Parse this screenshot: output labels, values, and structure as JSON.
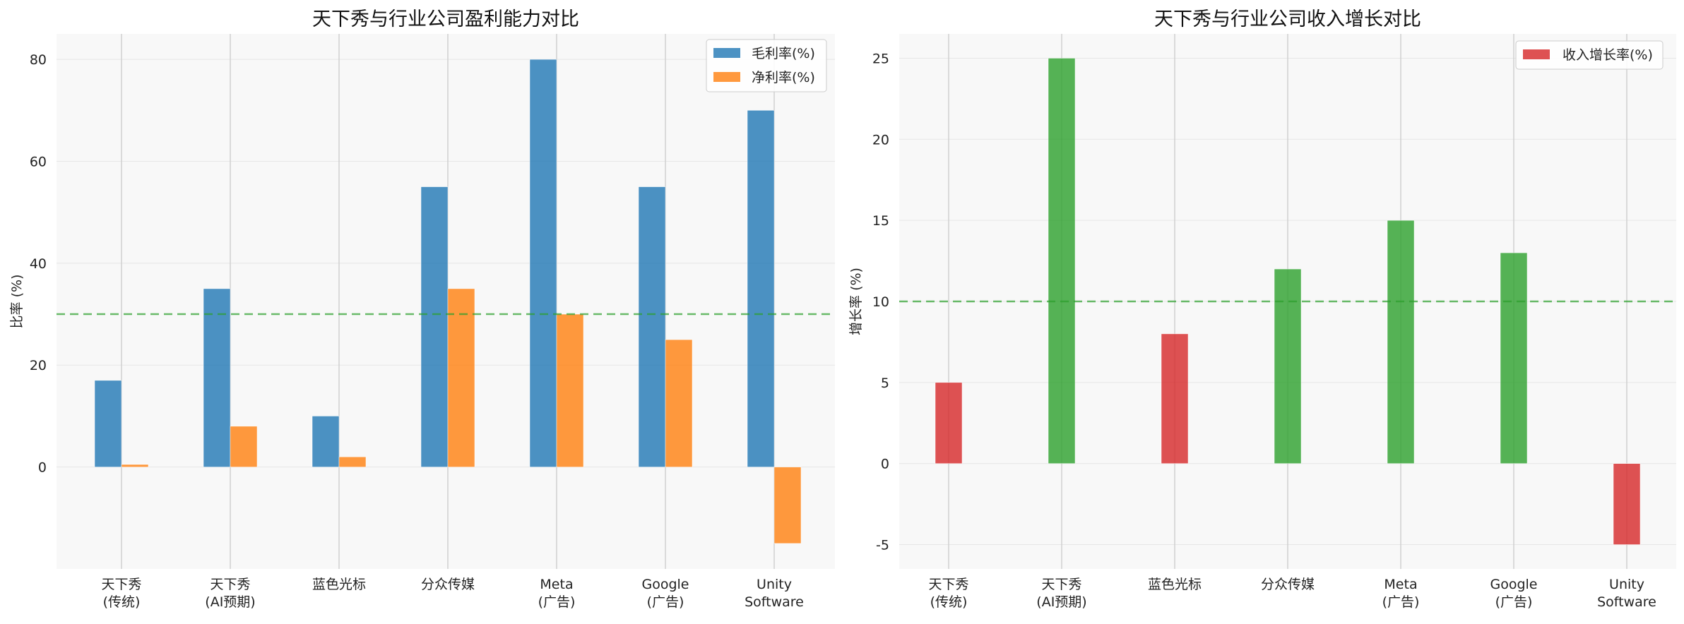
{
  "chart_data": [
    {
      "type": "bar",
      "title": "天下秀与行业公司盈利能力对比",
      "xlabel": "",
      "ylabel": "比率 (%)",
      "categories": [
        [
          "天下秀",
          "(传统)"
        ],
        [
          "天下秀",
          "(AI预期)"
        ],
        [
          "蓝色光标"
        ],
        [
          "分众传媒"
        ],
        [
          "Meta",
          "(广告)"
        ],
        [
          "Google",
          "(广告)"
        ],
        [
          "Unity",
          "Software"
        ]
      ],
      "series": [
        {
          "name": "毛利率(%)",
          "values": [
            17,
            35,
            10,
            55,
            80,
            55,
            70
          ],
          "color": "#1f77b4"
        },
        {
          "name": "净利率(%)",
          "values": [
            0.5,
            8,
            2,
            35,
            30,
            25,
            -15
          ],
          "color": "#ff7f0e"
        }
      ],
      "ylim": [
        -20,
        85
      ],
      "yticks": [
        0,
        20,
        40,
        60,
        80
      ],
      "reference_line": {
        "value": 30,
        "color": "#2ca02c",
        "style": "dashed"
      },
      "grid": true,
      "legend": "top-right"
    },
    {
      "type": "bar",
      "title": "天下秀与行业公司收入增长对比",
      "xlabel": "",
      "ylabel": "增长率 (%)",
      "categories": [
        [
          "天下秀",
          "(传统)"
        ],
        [
          "天下秀",
          "(AI预期)"
        ],
        [
          "蓝色光标"
        ],
        [
          "分众传媒"
        ],
        [
          "Meta",
          "(广告)"
        ],
        [
          "Google",
          "(广告)"
        ],
        [
          "Unity",
          "Software"
        ]
      ],
      "series": [
        {
          "name": "收入增长率(%)",
          "values": [
            5,
            25,
            8,
            12,
            15,
            13,
            -5
          ],
          "color": "#d62728"
        }
      ],
      "bar_colors": [
        "#d62728",
        "#2ca02c",
        "#d62728",
        "#2ca02c",
        "#2ca02c",
        "#2ca02c",
        "#d62728"
      ],
      "ylim": [
        -6.5,
        26.5
      ],
      "yticks": [
        -5,
        0,
        5,
        10,
        15,
        20,
        25
      ],
      "reference_line": {
        "value": 10,
        "color": "#2ca02c",
        "style": "dashed"
      },
      "grid": true,
      "legend": "top-right"
    }
  ]
}
